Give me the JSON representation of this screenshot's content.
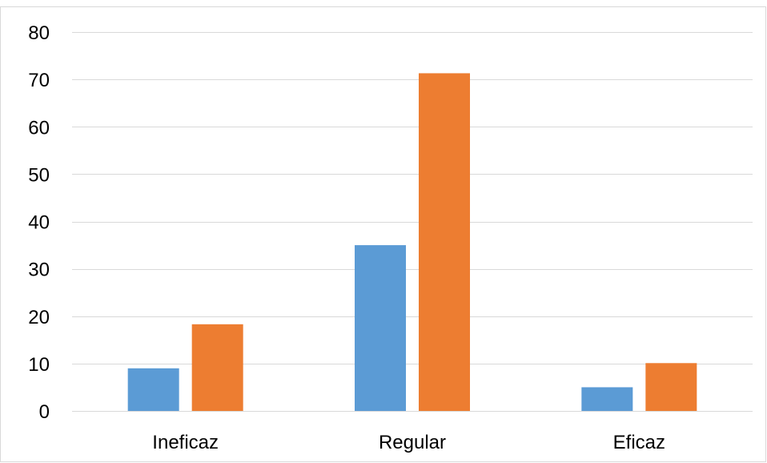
{
  "chart_data": {
    "type": "bar",
    "categories": [
      "Ineficaz",
      "Regular",
      "Eficaz"
    ],
    "series": [
      {
        "values": [
          9,
          35,
          5
        ],
        "color": "#5b9bd5"
      },
      {
        "values": [
          18.3,
          71.3,
          10.1
        ],
        "color": "#ed7d31"
      }
    ],
    "yticks": [
      "0",
      "10",
      "20",
      "30",
      "40",
      "50",
      "60",
      "70",
      "80"
    ],
    "ylim": [
      0,
      80
    ],
    "title": "",
    "xlabel": "",
    "ylabel": "",
    "grid": true,
    "legend": "none"
  }
}
